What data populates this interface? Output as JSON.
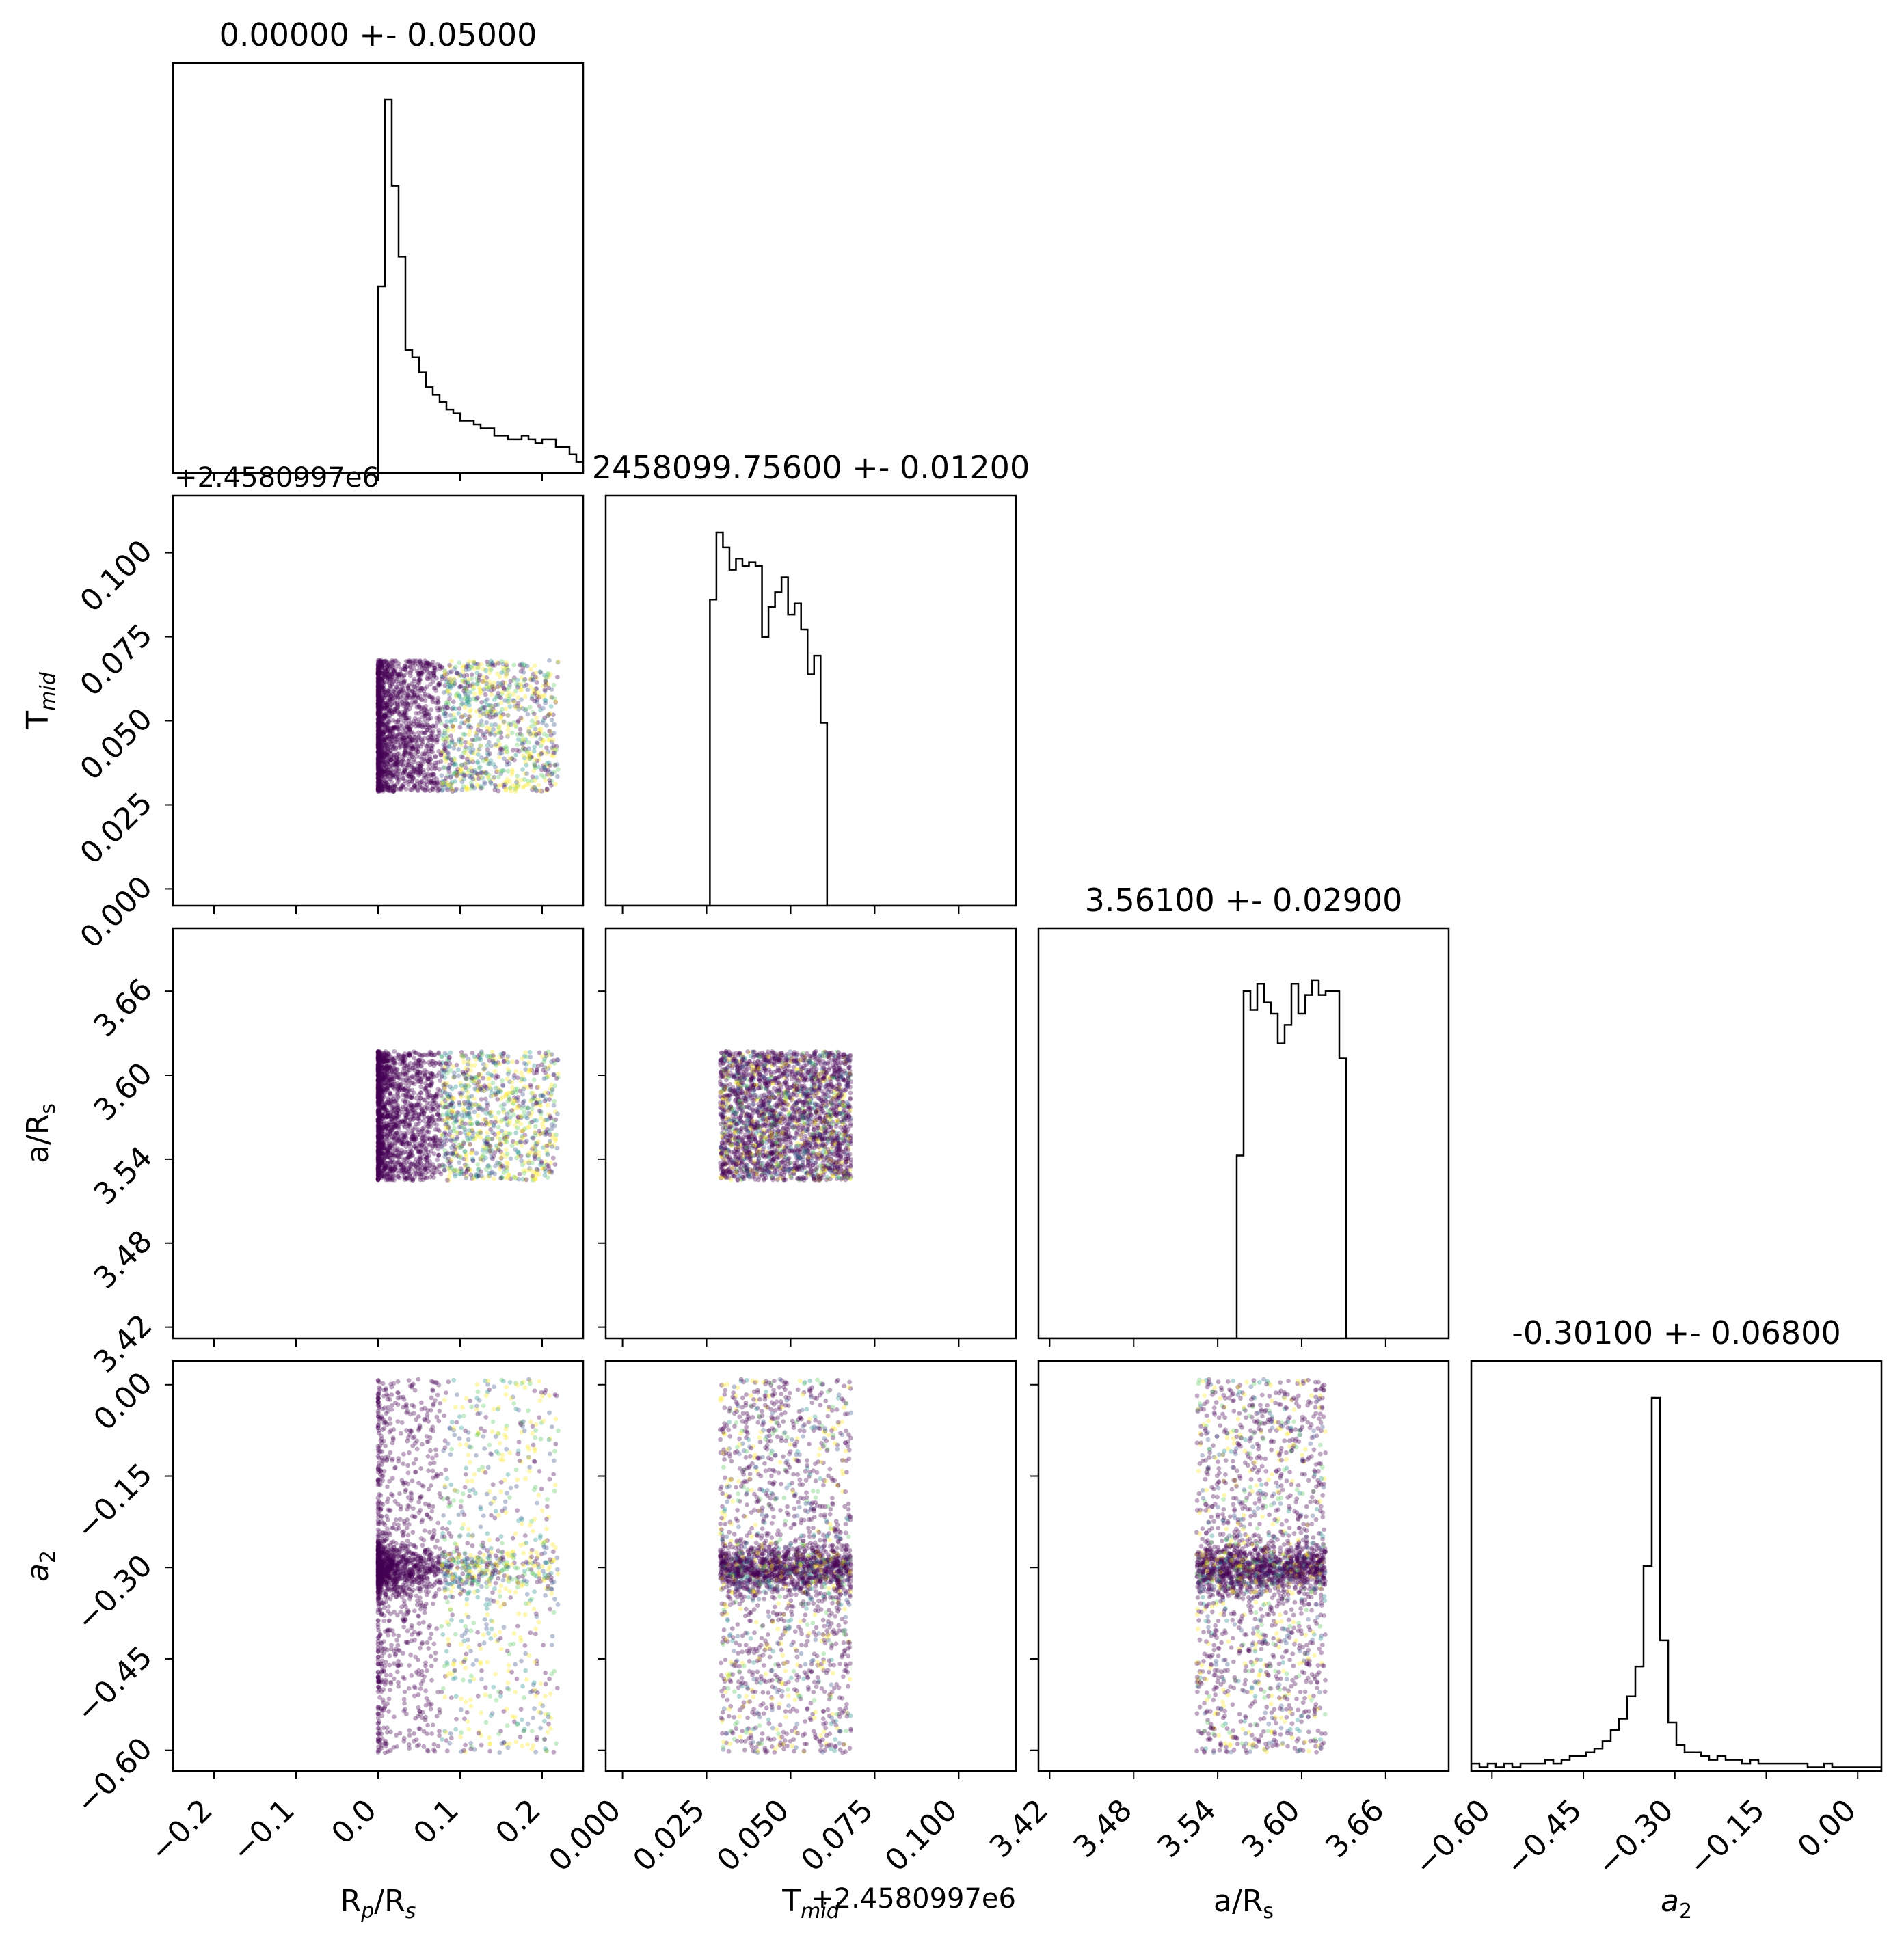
{
  "chart_data": {
    "type": "corner",
    "params": [
      {
        "id": "rp",
        "label_main": "R",
        "label_sub": "p",
        "label_tail": "/R",
        "label_sub2": "s",
        "title": "0.00000 +- 0.05000",
        "ticks": [
          "−0.2",
          "−0.1",
          "0.0",
          "0.1",
          "0.2"
        ],
        "tick_values": [
          -0.2,
          -0.1,
          0.0,
          0.1,
          0.2
        ],
        "range": [
          -0.25,
          0.25
        ],
        "offset": ""
      },
      {
        "id": "tmid",
        "label_main": "T",
        "label_sub": "mid",
        "label_tail": "",
        "label_sub2": "",
        "title": "2458099.75600 +- 0.01200",
        "ticks": [
          "0.000",
          "0.025",
          "0.050",
          "0.075",
          "0.100"
        ],
        "tick_values": [
          0.0,
          0.025,
          0.05,
          0.075,
          0.1
        ],
        "range": [
          -0.005,
          0.117
        ],
        "offset": "+2.4580997e6"
      },
      {
        "id": "ars",
        "label_main": "a/R",
        "label_sub": "s",
        "label_tail": "",
        "label_sub2": "",
        "title": "3.56100 +- 0.02900",
        "ticks": [
          "3.42",
          "3.48",
          "3.54",
          "3.60",
          "3.66"
        ],
        "tick_values": [
          3.42,
          3.48,
          3.54,
          3.6,
          3.66
        ],
        "range": [
          3.412,
          3.705
        ],
        "offset": ""
      },
      {
        "id": "a2",
        "label_main": "a",
        "label_sub": "2",
        "label_tail": "",
        "label_sub2": "",
        "italic": true,
        "title": "-0.30100 +- 0.06800",
        "ticks": [
          "−0.60",
          "−0.45",
          "−0.30",
          "−0.15",
          "0.00"
        ],
        "tick_values": [
          -0.6,
          -0.45,
          -0.3,
          -0.15,
          0.0
        ],
        "range": [
          -0.634,
          0.039
        ],
        "offset": ""
      }
    ],
    "samples": {
      "rp": {
        "min": 0.0,
        "max": 0.22
      },
      "tmid": {
        "min": 0.029,
        "max": 0.068
      },
      "ars": {
        "min": 3.525,
        "max": 3.617
      },
      "a2": {
        "center": -0.301,
        "sigma": 0.02,
        "min": -0.634,
        "max": 0.039
      }
    },
    "hist_1d": {
      "rp": [
        0.0,
        0.0,
        0.0,
        0.0,
        0.0,
        0.0,
        0.0,
        0.0,
        0.0,
        0.0,
        0.0,
        0.0,
        0.0,
        0.0,
        0.0,
        0.0,
        0.0,
        0.0,
        0.0,
        0.0,
        0.0,
        0.0,
        0.0,
        0.0,
        0.0,
        0.0,
        0.0,
        0.0,
        0.0,
        0.0,
        0.5,
        1.0,
        0.77,
        0.58,
        0.33,
        0.31,
        0.27,
        0.23,
        0.21,
        0.19,
        0.17,
        0.16,
        0.14,
        0.14,
        0.13,
        0.12,
        0.12,
        0.1,
        0.1,
        0.09,
        0.09,
        0.1,
        0.09,
        0.08,
        0.09,
        0.09,
        0.07,
        0.07,
        0.05,
        0.03
      ],
      "tmid": [
        0,
        0,
        0,
        0,
        0,
        0,
        0,
        0,
        0,
        0,
        0,
        0,
        0,
        0,
        0,
        0,
        0.82,
        1.0,
        0.96,
        0.9,
        0.93,
        0.91,
        0.92,
        0.91,
        0.72,
        0.8,
        0.84,
        0.88,
        0.78,
        0.81,
        0.74,
        0.62,
        0.67,
        0.49,
        0,
        0,
        0,
        0,
        0,
        0,
        0,
        0,
        0,
        0,
        0,
        0,
        0,
        0,
        0,
        0,
        0,
        0,
        0,
        0,
        0,
        0,
        0,
        0,
        0,
        0,
        0,
        0,
        0
      ],
      "ars": [
        0,
        0,
        0,
        0,
        0,
        0,
        0,
        0,
        0,
        0,
        0,
        0,
        0,
        0,
        0,
        0,
        0,
        0,
        0,
        0,
        0,
        0,
        0,
        0,
        0,
        0,
        0,
        0,
        0,
        0.49,
        0.93,
        0.88,
        0.95,
        0.9,
        0.87,
        0.79,
        0.84,
        0.95,
        0.87,
        0.92,
        0.96,
        0.92,
        0.93,
        0.93,
        0.75,
        0.0,
        0,
        0,
        0,
        0,
        0,
        0,
        0,
        0,
        0,
        0,
        0,
        0,
        0,
        0
      ],
      "a2": [
        0.02,
        0.01,
        0.02,
        0.01,
        0.02,
        0.01,
        0.02,
        0.02,
        0.02,
        0.03,
        0.02,
        0.03,
        0.04,
        0.04,
        0.05,
        0.06,
        0.08,
        0.11,
        0.14,
        0.2,
        0.28,
        0.55,
        1.0,
        0.35,
        0.13,
        0.07,
        0.05,
        0.05,
        0.04,
        0.03,
        0.04,
        0.03,
        0.03,
        0.02,
        0.03,
        0.02,
        0.02,
        0.02,
        0.02,
        0.02,
        0.02,
        0.01,
        0.01,
        0.02,
        0.01,
        0.01,
        0.01,
        0.01,
        0.01,
        0.01
      ]
    }
  }
}
